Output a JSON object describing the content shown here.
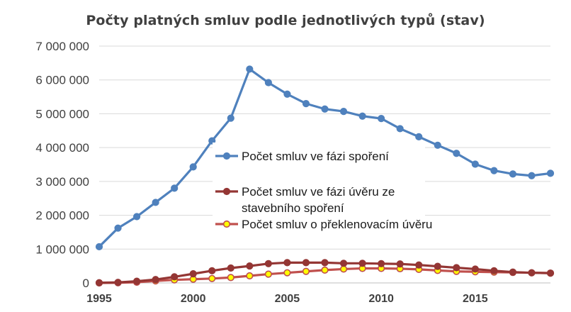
{
  "chart_data": {
    "type": "line",
    "title": "Počty platných smluv podle jednotlivých typů (stav)",
    "xlabel": "",
    "ylabel": "",
    "x": [
      1995,
      1996,
      1997,
      1998,
      1999,
      2000,
      2001,
      2002,
      2003,
      2004,
      2005,
      2006,
      2007,
      2008,
      2009,
      2010,
      2011,
      2012,
      2013,
      2014,
      2015,
      2016,
      2017,
      2018,
      2019
    ],
    "xlim": [
      1995,
      2019
    ],
    "ylim": [
      0,
      7000000
    ],
    "xticks": [
      1995,
      2000,
      2005,
      2010,
      2015
    ],
    "xtick_labels": [
      "1995",
      "2000",
      "2005",
      "2010",
      "2015"
    ],
    "yticks": [
      0,
      1000000,
      2000000,
      3000000,
      4000000,
      5000000,
      6000000,
      7000000
    ],
    "ytick_labels": [
      "0",
      "1 000 000",
      "2 000 000",
      "3 000 000",
      "4 000 000",
      "5 000 000",
      "6 000 000",
      "7 000 000"
    ],
    "grid": "horizontal",
    "legend_position": "center",
    "series": [
      {
        "name_lines": [
          "Počet smluv ve fázi spoření"
        ],
        "color": "#4f81bd",
        "marker_fill": "#4f81bd",
        "marker_stroke": "#4f81bd",
        "values": [
          1070000,
          1620000,
          1960000,
          2380000,
          2800000,
          3430000,
          4200000,
          4870000,
          6320000,
          5920000,
          5580000,
          5300000,
          5140000,
          5070000,
          4930000,
          4860000,
          4560000,
          4320000,
          4070000,
          3830000,
          3510000,
          3320000,
          3220000,
          3170000,
          3240000
        ]
      },
      {
        "name_lines": [
          "Počet smluv ve fázi úvěru ze",
          "stavebního spoření"
        ],
        "color": "#943634",
        "marker_fill": "#943634",
        "marker_stroke": "#943634",
        "values": [
          5000,
          15000,
          50000,
          100000,
          180000,
          270000,
          360000,
          440000,
          500000,
          570000,
          600000,
          600000,
          600000,
          580000,
          580000,
          570000,
          560000,
          530000,
          490000,
          450000,
          410000,
          360000,
          320000,
          300000,
          290000
        ]
      },
      {
        "name_lines": [
          "Počet smluv o překlenovacím úvěru"
        ],
        "color": "#c0504d",
        "marker_fill": "#ffff00",
        "marker_stroke": "#c0504d",
        "values": [
          0,
          5000,
          20000,
          60000,
          90000,
          110000,
          130000,
          160000,
          210000,
          260000,
          300000,
          340000,
          380000,
          410000,
          430000,
          430000,
          420000,
          400000,
          370000,
          340000,
          330000,
          320000,
          310000,
          300000,
          290000
        ]
      }
    ]
  }
}
